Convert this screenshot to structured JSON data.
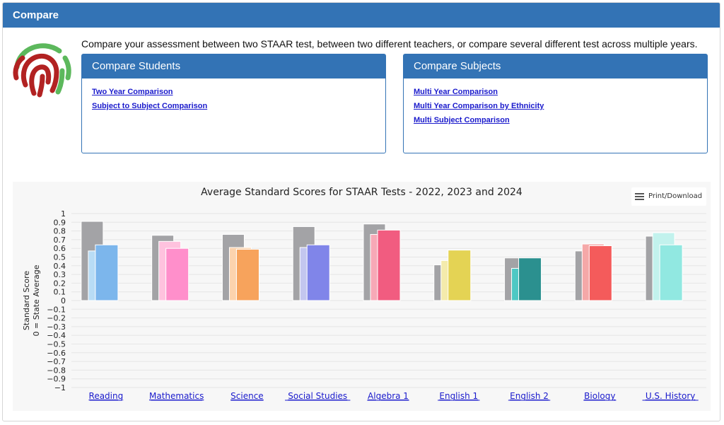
{
  "header": {
    "title": "Compare"
  },
  "intro": "Compare your assessment between two STAAR test, between two different teachers, or compare several different test across multiple years.",
  "panels": {
    "students": {
      "title": "Compare Students",
      "links": [
        "Two Year Comparison",
        "Subject to Subject Comparison"
      ]
    },
    "subjects": {
      "title": "Compare Subjects",
      "links": [
        "Multi Year Comparison",
        "Multi Year Comparison by Ethnicity",
        "Multi Subject Comparison"
      ]
    }
  },
  "print_label": "Print/Download",
  "colors": {
    "accent": "#3373b5",
    "link": "#1a1acc"
  },
  "chart_data": {
    "type": "bar",
    "title": "Average Standard Scores for STAAR Tests - 2022, 2023 and 2024",
    "ylabel": "Standard Score",
    "ylabel2": "0 = State Average",
    "ylim": [
      -1,
      1
    ],
    "yticks": [
      "1",
      "0.9",
      "0.8",
      "0.7",
      "0.6",
      "0.5",
      "0.4",
      "0.3",
      "0.2",
      "0.1",
      "0",
      "−0.1",
      "−0.2",
      "−0.3",
      "−0.4",
      "−0.5",
      "−0.6",
      "−0.7",
      "−0.8",
      "−0.9",
      "−1"
    ],
    "categories": [
      "Reading",
      "Mathematics",
      "Science",
      "Social Studies",
      "Algebra 1",
      "English 1",
      "English 2",
      "Biology",
      "U.S. History"
    ],
    "series": [
      {
        "values": [
          0.91,
          0.75,
          0.76,
          0.85,
          0.88,
          0.41,
          0.49,
          0.57,
          0.74
        ]
      },
      {
        "values": [
          0.57,
          0.68,
          0.61,
          0.61,
          0.76,
          0.46,
          0.37,
          0.65,
          0.78
        ]
      },
      {
        "values": [
          0.64,
          0.6,
          0.59,
          0.64,
          0.81,
          0.58,
          0.49,
          0.63,
          0.64
        ]
      }
    ],
    "colors_2022": "#a3a3a6",
    "colors_2023": [
      "#b8dcf5",
      "#ffc2de",
      "#fcd3ad",
      "#c3c6ef",
      "#f7a9b7",
      "#f4ebac",
      "#4ec8c4",
      "#f5a8a8",
      "#c2f2ed"
    ],
    "colors_2024": [
      "#7cb6ec",
      "#ff8fcb",
      "#f7a35c",
      "#8085e9",
      "#f15c80",
      "#e4d354",
      "#2b908f",
      "#f45b5b",
      "#91e8e1"
    ]
  }
}
